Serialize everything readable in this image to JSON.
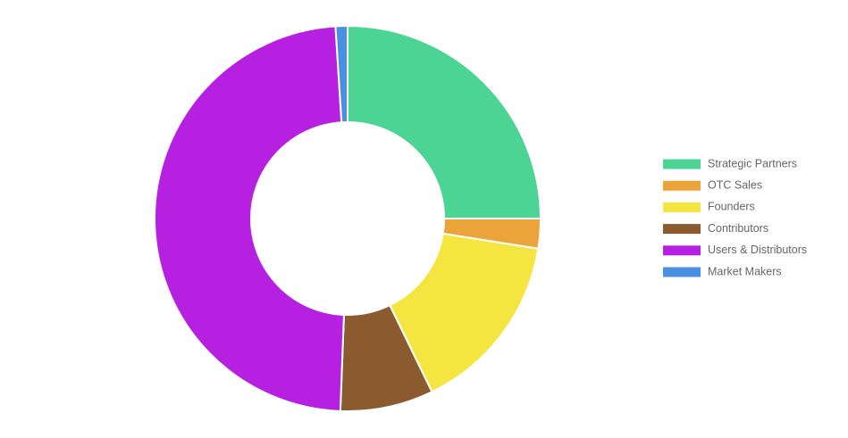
{
  "chart_data": {
    "type": "doughnut",
    "categories": [
      "Strategic Partners",
      "OTC Sales",
      "Founders",
      "Contributors",
      "Users & Distributors",
      "Market Makers"
    ],
    "values": [
      25,
      2.5,
      15.3,
      7.8,
      48.4,
      1
    ],
    "colors": [
      "#4cd494",
      "#eba43a",
      "#f4e540",
      "#8b5a2f",
      "#b620e0",
      "#4a90e2"
    ],
    "legend": "right"
  }
}
